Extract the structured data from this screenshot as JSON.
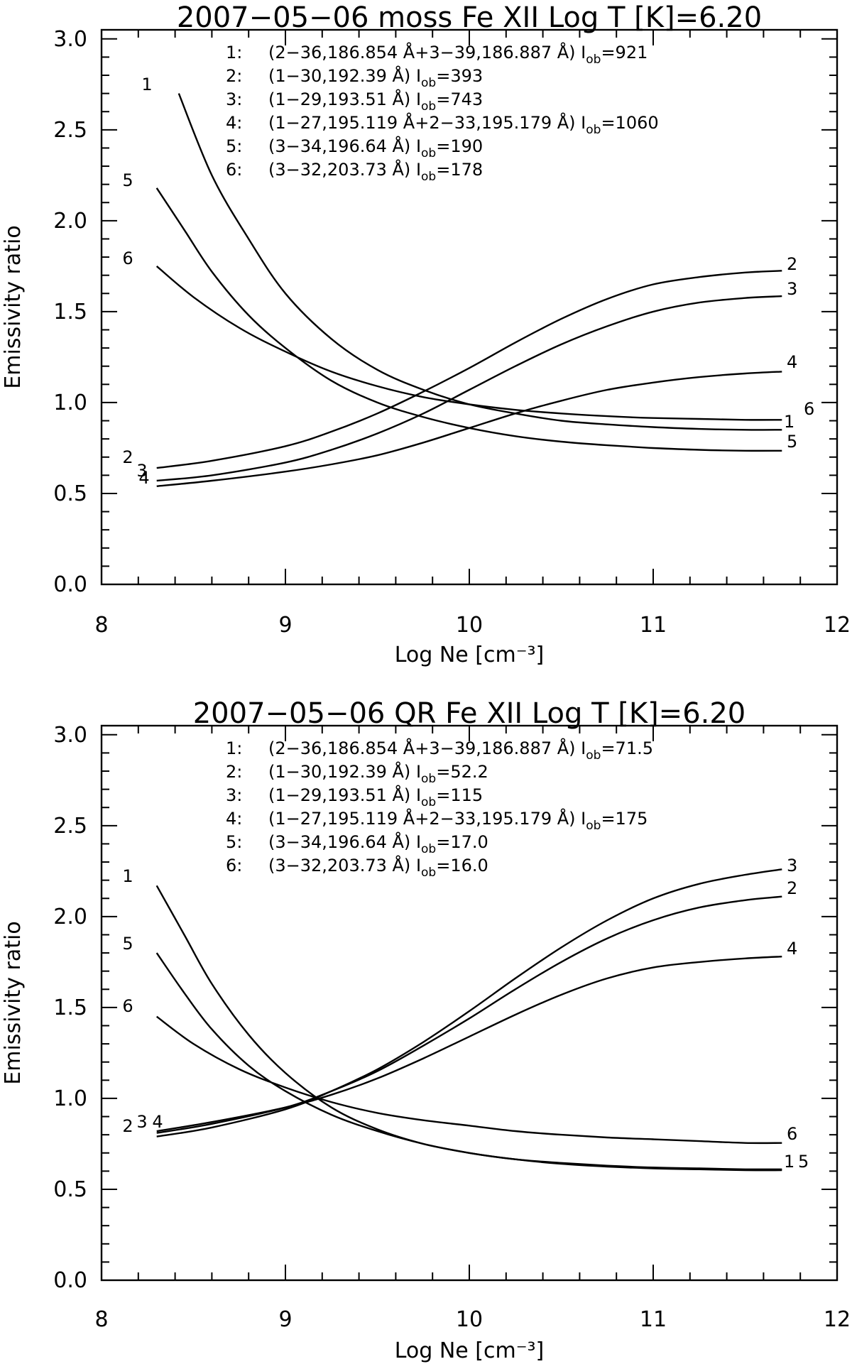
{
  "chart_data": [
    {
      "type": "line",
      "title": "2007−05−06 moss  Fe XII  Log T [K]=6.20",
      "xlabel": "Log Ne [cm⁻³]",
      "ylabel": "Emissivity ratio",
      "xlim": [
        8,
        12
      ],
      "ylim": [
        0,
        3.05
      ],
      "xticks": [
        "8",
        "9",
        "10",
        "11",
        "12"
      ],
      "yticks": [
        "0.0",
        "0.5",
        "1.0",
        "1.5",
        "2.0",
        "2.5",
        "3.0"
      ],
      "legend": [
        {
          "id": "1:",
          "desc": "(2−36,186.854 Å+3−39,186.887 Å)",
          "iob": "I",
          "sub": "ob",
          "val": "=921"
        },
        {
          "id": "2:",
          "desc": "(1−30,192.39 Å)",
          "iob": "I",
          "sub": "ob",
          "val": "=393"
        },
        {
          "id": "3:",
          "desc": "(1−29,193.51 Å)",
          "iob": "I",
          "sub": "ob",
          "val": "=743"
        },
        {
          "id": "4:",
          "desc": "(1−27,195.119 Å+2−33,195.179 Å)",
          "iob": "I",
          "sub": "ob",
          "val": "=1060"
        },
        {
          "id": "5:",
          "desc": "(3−34,196.64 Å)",
          "iob": "I",
          "sub": "ob",
          "val": "=190"
        },
        {
          "id": "6:",
          "desc": "(3−32,203.73 Å)",
          "iob": "I",
          "sub": "ob",
          "val": "=178"
        }
      ],
      "series": [
        {
          "name": "1",
          "x": [
            8.42,
            8.6,
            8.8,
            9.0,
            9.25,
            9.5,
            9.75,
            10.0,
            10.25,
            10.5,
            10.75,
            11.0,
            11.25,
            11.5,
            11.7
          ],
          "values": [
            2.7,
            2.25,
            1.9,
            1.6,
            1.35,
            1.18,
            1.07,
            0.99,
            0.94,
            0.9,
            0.88,
            0.865,
            0.855,
            0.85,
            0.85
          ]
        },
        {
          "name": "2",
          "x": [
            8.3,
            8.6,
            9.0,
            9.25,
            9.5,
            9.75,
            10.0,
            10.25,
            10.5,
            10.75,
            11.0,
            11.25,
            11.5,
            11.7
          ],
          "values": [
            0.64,
            0.68,
            0.76,
            0.84,
            0.94,
            1.06,
            1.19,
            1.33,
            1.46,
            1.57,
            1.65,
            1.69,
            1.715,
            1.725
          ]
        },
        {
          "name": "3",
          "x": [
            8.3,
            8.6,
            9.0,
            9.25,
            9.5,
            9.75,
            10.0,
            10.25,
            10.5,
            10.75,
            11.0,
            11.25,
            11.5,
            11.7
          ],
          "values": [
            0.57,
            0.6,
            0.67,
            0.74,
            0.83,
            0.94,
            1.07,
            1.2,
            1.32,
            1.42,
            1.5,
            1.55,
            1.575,
            1.585
          ]
        },
        {
          "name": "4",
          "x": [
            8.3,
            8.6,
            9.0,
            9.25,
            9.5,
            9.75,
            10.0,
            10.25,
            10.5,
            10.75,
            11.0,
            11.25,
            11.5,
            11.7
          ],
          "values": [
            0.54,
            0.57,
            0.62,
            0.66,
            0.71,
            0.78,
            0.86,
            0.94,
            1.01,
            1.07,
            1.11,
            1.14,
            1.16,
            1.17
          ]
        },
        {
          "name": "5",
          "x": [
            8.3,
            8.45,
            8.6,
            8.8,
            9.0,
            9.25,
            9.5,
            9.75,
            10.0,
            10.25,
            10.5,
            10.75,
            11.0,
            11.25,
            11.5,
            11.7
          ],
          "values": [
            2.18,
            1.95,
            1.72,
            1.48,
            1.3,
            1.12,
            1.0,
            0.92,
            0.86,
            0.815,
            0.785,
            0.765,
            0.75,
            0.74,
            0.735,
            0.735
          ]
        },
        {
          "name": "6",
          "x": [
            8.3,
            8.5,
            8.75,
            9.0,
            9.25,
            9.5,
            9.75,
            10.0,
            10.25,
            10.5,
            10.75,
            11.0,
            11.25,
            11.5,
            11.7
          ],
          "values": [
            1.75,
            1.58,
            1.41,
            1.28,
            1.17,
            1.09,
            1.03,
            0.99,
            0.96,
            0.94,
            0.925,
            0.915,
            0.91,
            0.905,
            0.905
          ]
        }
      ]
    },
    {
      "type": "line",
      "title": "2007−05−06 QR  Fe XII  Log T [K]=6.20",
      "xlabel": "Log Ne [cm⁻³]",
      "ylabel": "Emissivity ratio",
      "xlim": [
        8,
        12
      ],
      "ylim": [
        0,
        3.05
      ],
      "xticks": [
        "8",
        "9",
        "10",
        "11",
        "12"
      ],
      "yticks": [
        "0.0",
        "0.5",
        "1.0",
        "1.5",
        "2.0",
        "2.5",
        "3.0"
      ],
      "legend": [
        {
          "id": "1:",
          "desc": "(2−36,186.854 Å+3−39,186.887 Å)",
          "iob": "I",
          "sub": "ob",
          "val": "=71.5"
        },
        {
          "id": "2:",
          "desc": "(1−30,192.39 Å)",
          "iob": "I",
          "sub": "ob",
          "val": "=52.2"
        },
        {
          "id": "3:",
          "desc": "(1−29,193.51 Å)",
          "iob": "I",
          "sub": "ob",
          "val": "=115"
        },
        {
          "id": "4:",
          "desc": "(1−27,195.119 Å+2−33,195.179 Å)",
          "iob": "I",
          "sub": "ob",
          "val": "=175"
        },
        {
          "id": "5:",
          "desc": "(3−34,196.64 Å)",
          "iob": "I",
          "sub": "ob",
          "val": "=17.0"
        },
        {
          "id": "6:",
          "desc": "(3−32,203.73 Å)",
          "iob": "I",
          "sub": "ob",
          "val": "=16.0"
        }
      ],
      "series": [
        {
          "name": "1",
          "x": [
            8.3,
            8.45,
            8.6,
            8.8,
            9.0,
            9.25,
            9.5,
            9.75,
            10.0,
            10.25,
            10.5,
            10.75,
            11.0,
            11.25,
            11.5,
            11.7
          ],
          "values": [
            2.17,
            1.9,
            1.63,
            1.35,
            1.14,
            0.95,
            0.83,
            0.75,
            0.7,
            0.665,
            0.64,
            0.625,
            0.615,
            0.61,
            0.605,
            0.605
          ]
        },
        {
          "name": "2",
          "x": [
            8.3,
            8.6,
            9.0,
            9.25,
            9.5,
            9.75,
            10.0,
            10.25,
            10.5,
            10.75,
            11.0,
            11.25,
            11.5,
            11.7
          ],
          "values": [
            0.81,
            0.86,
            0.95,
            1.04,
            1.15,
            1.29,
            1.44,
            1.6,
            1.75,
            1.88,
            1.98,
            2.05,
            2.09,
            2.11
          ]
        },
        {
          "name": "3",
          "x": [
            8.3,
            8.6,
            9.0,
            9.25,
            9.5,
            9.75,
            10.0,
            10.25,
            10.5,
            10.75,
            11.0,
            11.25,
            11.5,
            11.7
          ],
          "values": [
            0.79,
            0.84,
            0.94,
            1.04,
            1.16,
            1.31,
            1.48,
            1.66,
            1.83,
            1.98,
            2.1,
            2.18,
            2.23,
            2.26
          ]
        },
        {
          "name": "4",
          "x": [
            8.3,
            8.6,
            9.0,
            9.25,
            9.5,
            9.75,
            10.0,
            10.25,
            10.5,
            10.75,
            11.0,
            11.25,
            11.5,
            11.7
          ],
          "values": [
            0.82,
            0.87,
            0.95,
            1.02,
            1.11,
            1.22,
            1.34,
            1.46,
            1.57,
            1.66,
            1.72,
            1.75,
            1.77,
            1.78
          ]
        },
        {
          "name": "5",
          "x": [
            8.3,
            8.45,
            8.6,
            8.8,
            9.0,
            9.25,
            9.5,
            9.75,
            10.0,
            10.25,
            10.5,
            10.75,
            11.0,
            11.25,
            11.5,
            11.7
          ],
          "values": [
            1.8,
            1.58,
            1.38,
            1.18,
            1.04,
            0.91,
            0.82,
            0.75,
            0.7,
            0.665,
            0.645,
            0.63,
            0.62,
            0.615,
            0.61,
            0.61
          ]
        },
        {
          "name": "6",
          "x": [
            8.3,
            8.5,
            8.75,
            9.0,
            9.25,
            9.5,
            9.75,
            10.0,
            10.25,
            10.5,
            10.75,
            11.0,
            11.25,
            11.5,
            11.7
          ],
          "values": [
            1.45,
            1.3,
            1.16,
            1.06,
            0.98,
            0.92,
            0.88,
            0.85,
            0.82,
            0.8,
            0.785,
            0.775,
            0.765,
            0.755,
            0.755
          ]
        }
      ]
    }
  ]
}
